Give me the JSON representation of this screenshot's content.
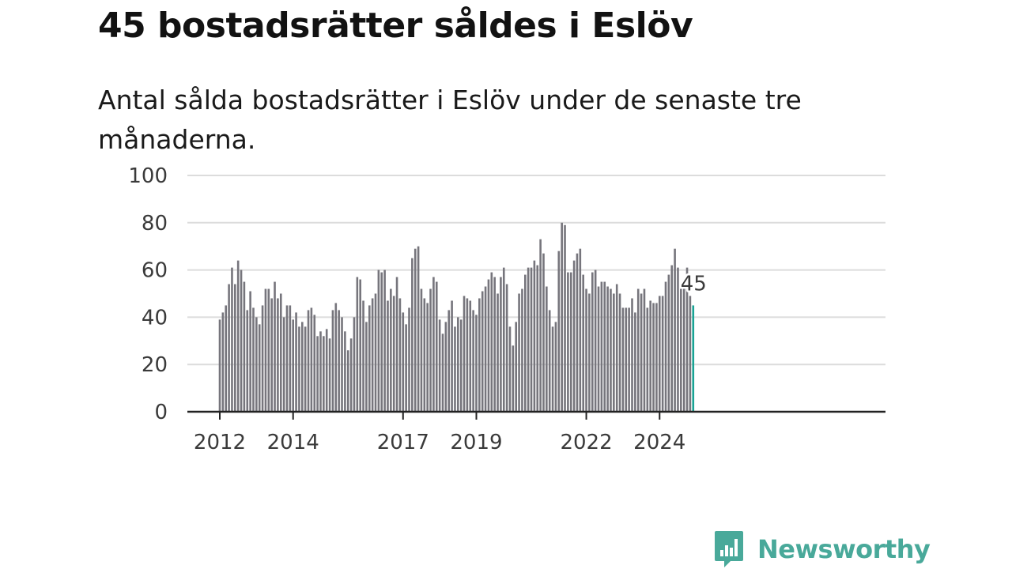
{
  "title": "45 bostadsrätter såldes i Eslöv",
  "subtitle": "Antal sålda bostadsrätter i Eslöv under de senaste tre månaderna.",
  "brand": {
    "name": "Newsworthy",
    "color": "#49a99a"
  },
  "colors": {
    "bar": "#76757c",
    "highlight": "#1aa394",
    "grid": "#dcdcdc",
    "axis": "#222222"
  },
  "chart_data": {
    "type": "bar",
    "x_start": "2012-01",
    "frequency": "monthly",
    "values": [
      39,
      42,
      45,
      54,
      61,
      54,
      64,
      60,
      55,
      43,
      51,
      44,
      40,
      37,
      45,
      52,
      52,
      48,
      55,
      48,
      50,
      40,
      45,
      45,
      39,
      42,
      36,
      38,
      36,
      43,
      44,
      41,
      32,
      34,
      32,
      35,
      31,
      43,
      46,
      43,
      40,
      34,
      26,
      31,
      40,
      57,
      56,
      47,
      38,
      45,
      48,
      50,
      60,
      59,
      60,
      47,
      52,
      49,
      57,
      48,
      42,
      37,
      44,
      65,
      69,
      70,
      52,
      48,
      46,
      52,
      57,
      55,
      39,
      33,
      38,
      43,
      47,
      36,
      40,
      39,
      49,
      48,
      47,
      43,
      41,
      48,
      51,
      53,
      56,
      59,
      57,
      50,
      57,
      61,
      54,
      36,
      28,
      38,
      50,
      52,
      58,
      61,
      61,
      64,
      62,
      73,
      67,
      53,
      43,
      36,
      38,
      68,
      80,
      79,
      59,
      59,
      64,
      67,
      69,
      58,
      52,
      50,
      59,
      60,
      53,
      55,
      55,
      53,
      52,
      50,
      54,
      50,
      44,
      44,
      44,
      48,
      42,
      52,
      50,
      52,
      44,
      47,
      46,
      46,
      49,
      49,
      55,
      58,
      62,
      69,
      61,
      52,
      52,
      61,
      49,
      45
    ],
    "x_tick_labels": [
      "2012",
      "2014",
      "2017",
      "2019",
      "2022",
      "2024"
    ],
    "y_ticks": [
      0,
      20,
      40,
      60,
      80,
      100
    ],
    "ylim": [
      0,
      100
    ],
    "highlight_label": "45",
    "grid": true
  }
}
